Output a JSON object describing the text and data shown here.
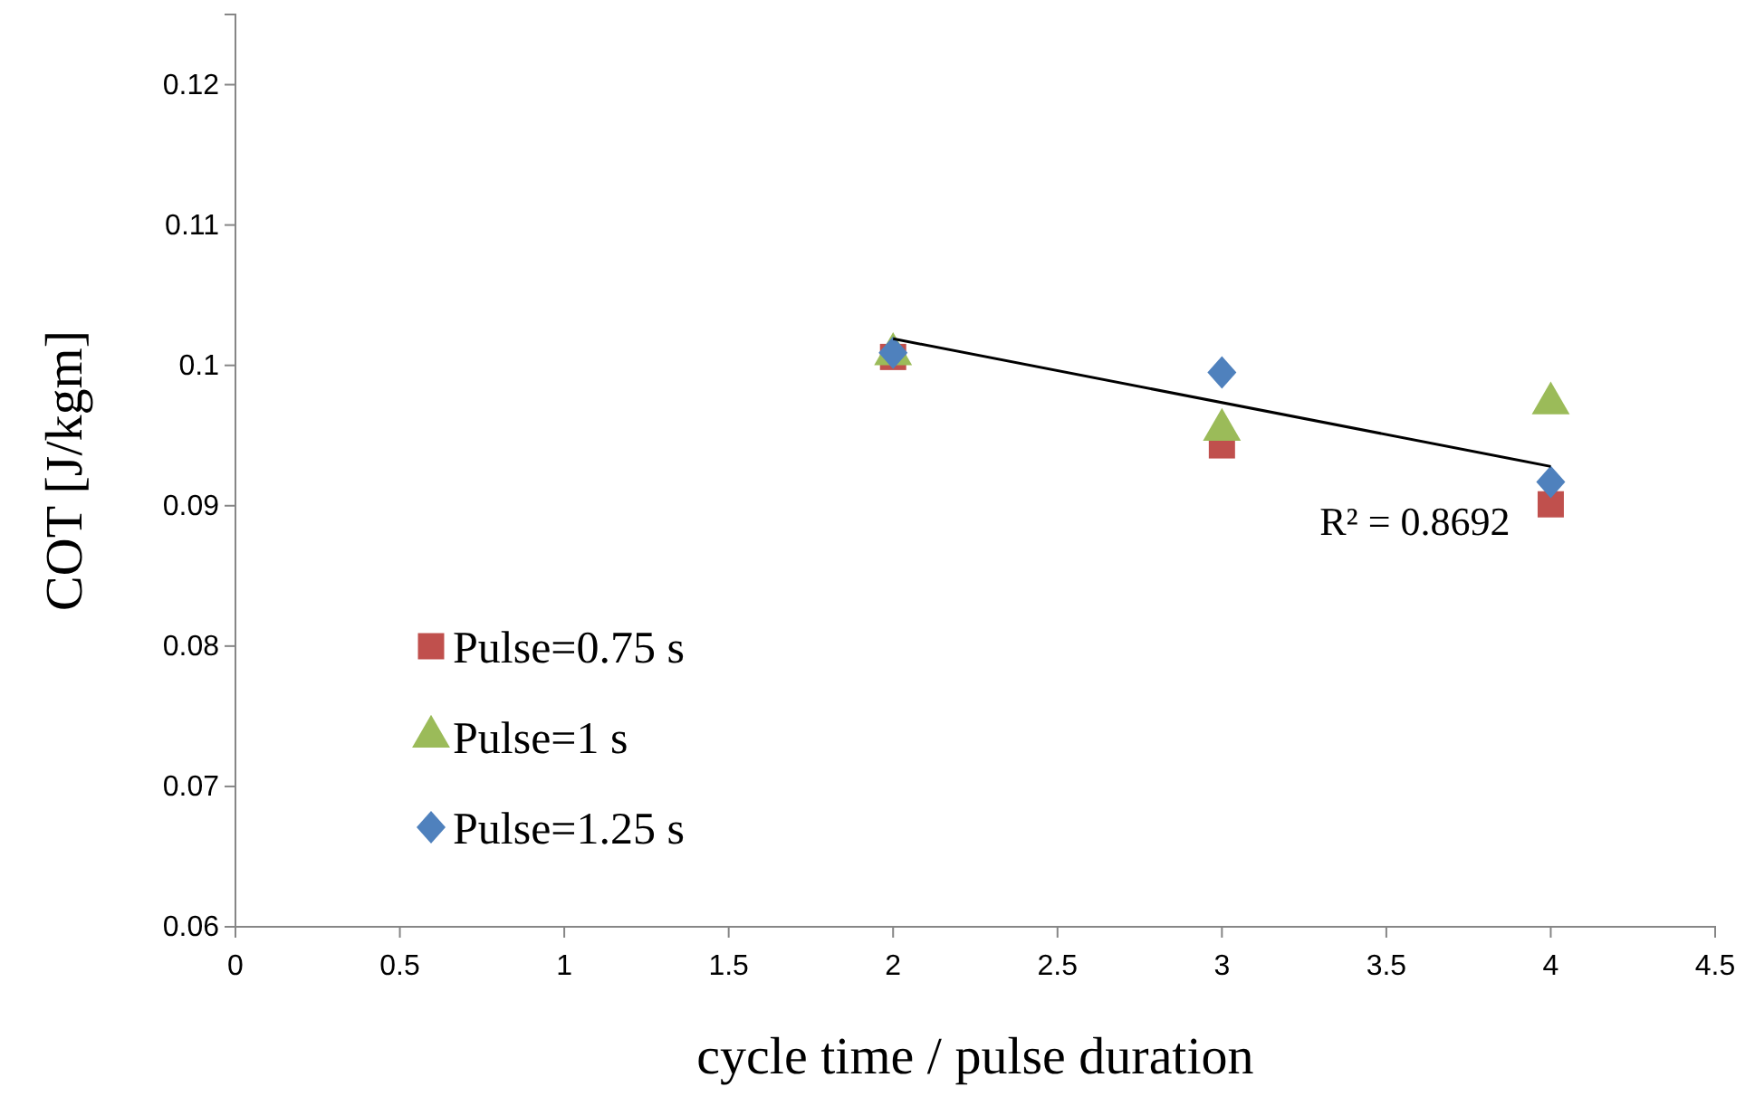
{
  "chart_data": {
    "type": "scatter",
    "xlabel": "cycle time / pulse duration",
    "ylabel": "COT [J/kgm]",
    "x": [
      2,
      3,
      4
    ],
    "series": [
      {
        "name": "Pulse=0.75 s",
        "color": "#c0504d",
        "marker": "square",
        "values": [
          0.1006,
          0.0943,
          0.0901
        ]
      },
      {
        "name": "Pulse=1 s",
        "color": "#9bbb59",
        "marker": "triangle",
        "values": [
          0.1008,
          0.0954,
          0.0973
        ]
      },
      {
        "name": "Pulse=1.25 s",
        "color": "#4f81bd",
        "marker": "diamond",
        "values": [
          0.1009,
          0.0995,
          0.0917
        ]
      },
      {
        "type": "line",
        "color": "#000000",
        "x": [
          2,
          4
        ],
        "values": [
          0.1019,
          0.0928
        ]
      }
    ],
    "annotations": [
      "R² = 0.8692"
    ],
    "xlim": [
      0,
      4.5
    ],
    "xticks": [
      0,
      0.5,
      1,
      1.5,
      2,
      2.5,
      3,
      3.5,
      4,
      4.5
    ],
    "ylim": [
      0.06,
      0.125
    ],
    "yticks": [
      0.06,
      0.07,
      0.08,
      0.09,
      0.1,
      0.11,
      0.12
    ],
    "grid": false,
    "legend": "bottom left"
  }
}
